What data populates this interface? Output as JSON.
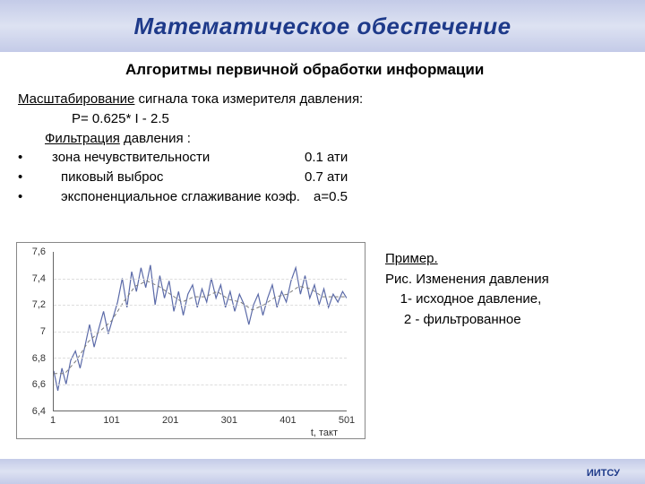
{
  "colors": {
    "title_text": "#1e3a8a",
    "bar_grad_top": "#c4cbe8",
    "bar_grad_mid": "#dde2f2",
    "bar_grad_bot": "#c4cbe8",
    "chart_raw": "#5b6aa8",
    "chart_filtered": "#7a7a7a",
    "grid": "#dddddd",
    "axis": "#666666"
  },
  "title": "Математическое обеспечение",
  "subtitle": "Алгоритмы  первичной обработки информации",
  "scaling": {
    "label": "Масштабирование",
    "rest": "  сигнала тока измерителя    давления:",
    "formula": "Р= 0.625* I  - 2.5"
  },
  "filtering": {
    "label": "Фильтрация",
    "rest": "   давления :",
    "items": [
      {
        "label": "зона нечувствительности",
        "value": "0.1 ати"
      },
      {
        "label": "пиковый выброс",
        "value": " 0.7 ати"
      },
      {
        "label": "экспоненциальное сглаживание коэф.",
        "value": "а=0.5"
      }
    ]
  },
  "example": {
    "head": "Пример.",
    "caption": " Рис.  Изменения давления",
    "line1": "    1- исходное давление,",
    "line2": "     2 - фильтрованное"
  },
  "chart": {
    "type": "line",
    "xlim": [
      1,
      501
    ],
    "ylim": [
      6.4,
      7.6
    ],
    "yticks": [
      6.4,
      6.6,
      6.8,
      7.0,
      7.2,
      7.4,
      7.6
    ],
    "ytick_labels": [
      "6,4",
      "6,6",
      "6,8",
      "7",
      "7,2",
      "7,4",
      "7,6"
    ],
    "xticks": [
      1,
      101,
      201,
      301,
      401,
      501
    ],
    "xtick_labels": [
      "1",
      "101",
      "201",
      "301",
      "401",
      "501"
    ],
    "x_axis_title": "t, такт",
    "line_width_raw": 1.2,
    "line_width_filtered": 1.0,
    "filtered_dash": "4 3",
    "background_color": "#ffffff",
    "series_raw": [
      [
        1,
        6.7
      ],
      [
        8,
        6.55
      ],
      [
        15,
        6.72
      ],
      [
        22,
        6.6
      ],
      [
        30,
        6.78
      ],
      [
        38,
        6.85
      ],
      [
        46,
        6.72
      ],
      [
        55,
        6.9
      ],
      [
        62,
        7.05
      ],
      [
        70,
        6.88
      ],
      [
        78,
        7.02
      ],
      [
        86,
        7.15
      ],
      [
        94,
        6.98
      ],
      [
        102,
        7.1
      ],
      [
        110,
        7.22
      ],
      [
        118,
        7.4
      ],
      [
        126,
        7.18
      ],
      [
        134,
        7.45
      ],
      [
        142,
        7.3
      ],
      [
        150,
        7.48
      ],
      [
        158,
        7.33
      ],
      [
        166,
        7.5
      ],
      [
        174,
        7.2
      ],
      [
        182,
        7.42
      ],
      [
        190,
        7.25
      ],
      [
        198,
        7.38
      ],
      [
        206,
        7.15
      ],
      [
        214,
        7.3
      ],
      [
        222,
        7.12
      ],
      [
        230,
        7.28
      ],
      [
        238,
        7.35
      ],
      [
        246,
        7.18
      ],
      [
        254,
        7.32
      ],
      [
        262,
        7.22
      ],
      [
        270,
        7.4
      ],
      [
        278,
        7.25
      ],
      [
        286,
        7.35
      ],
      [
        294,
        7.18
      ],
      [
        302,
        7.3
      ],
      [
        310,
        7.15
      ],
      [
        318,
        7.28
      ],
      [
        326,
        7.2
      ],
      [
        334,
        7.05
      ],
      [
        342,
        7.2
      ],
      [
        350,
        7.28
      ],
      [
        358,
        7.12
      ],
      [
        366,
        7.25
      ],
      [
        374,
        7.35
      ],
      [
        382,
        7.18
      ],
      [
        390,
        7.3
      ],
      [
        398,
        7.22
      ],
      [
        406,
        7.38
      ],
      [
        414,
        7.48
      ],
      [
        422,
        7.28
      ],
      [
        430,
        7.42
      ],
      [
        438,
        7.25
      ],
      [
        446,
        7.35
      ],
      [
        454,
        7.2
      ],
      [
        462,
        7.32
      ],
      [
        470,
        7.18
      ],
      [
        478,
        7.28
      ],
      [
        486,
        7.22
      ],
      [
        494,
        7.3
      ],
      [
        501,
        7.25
      ]
    ],
    "series_filtered": [
      [
        1,
        6.68
      ],
      [
        20,
        6.68
      ],
      [
        40,
        6.78
      ],
      [
        60,
        6.92
      ],
      [
        80,
        7.0
      ],
      [
        100,
        7.08
      ],
      [
        120,
        7.22
      ],
      [
        140,
        7.34
      ],
      [
        160,
        7.38
      ],
      [
        180,
        7.34
      ],
      [
        200,
        7.28
      ],
      [
        220,
        7.22
      ],
      [
        240,
        7.26
      ],
      [
        260,
        7.26
      ],
      [
        280,
        7.3
      ],
      [
        300,
        7.24
      ],
      [
        320,
        7.22
      ],
      [
        340,
        7.16
      ],
      [
        360,
        7.2
      ],
      [
        380,
        7.26
      ],
      [
        400,
        7.28
      ],
      [
        420,
        7.34
      ],
      [
        440,
        7.32
      ],
      [
        460,
        7.26
      ],
      [
        480,
        7.26
      ],
      [
        501,
        7.26
      ]
    ]
  },
  "footer": "ИИТСУ"
}
